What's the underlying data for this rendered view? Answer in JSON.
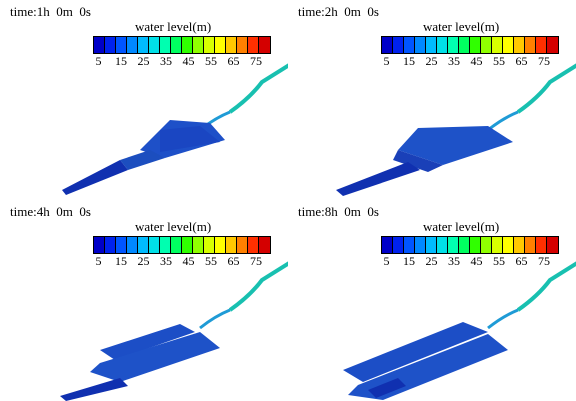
{
  "panels": [
    {
      "time": "time:1h  0m  0s",
      "legend_title": "water level(m)"
    },
    {
      "time": "time:2h  0m  0s",
      "legend_title": "water level(m)"
    },
    {
      "time": "time:4h  0m  0s",
      "legend_title": "water level(m)"
    },
    {
      "time": "time:8h  0m  0s",
      "legend_title": "water level(m)"
    }
  ],
  "colorbar": {
    "ticks": [
      "5",
      "15",
      "25",
      "35",
      "45",
      "55",
      "65",
      "75"
    ],
    "colors": [
      "#0000c8",
      "#0022ee",
      "#0055ff",
      "#0088ff",
      "#00bbff",
      "#00e0e8",
      "#00ffb0",
      "#00ff60",
      "#30ff00",
      "#90ff00",
      "#d8ff00",
      "#ffff00",
      "#ffc800",
      "#ff8000",
      "#ff3000",
      "#d40000"
    ]
  }
}
